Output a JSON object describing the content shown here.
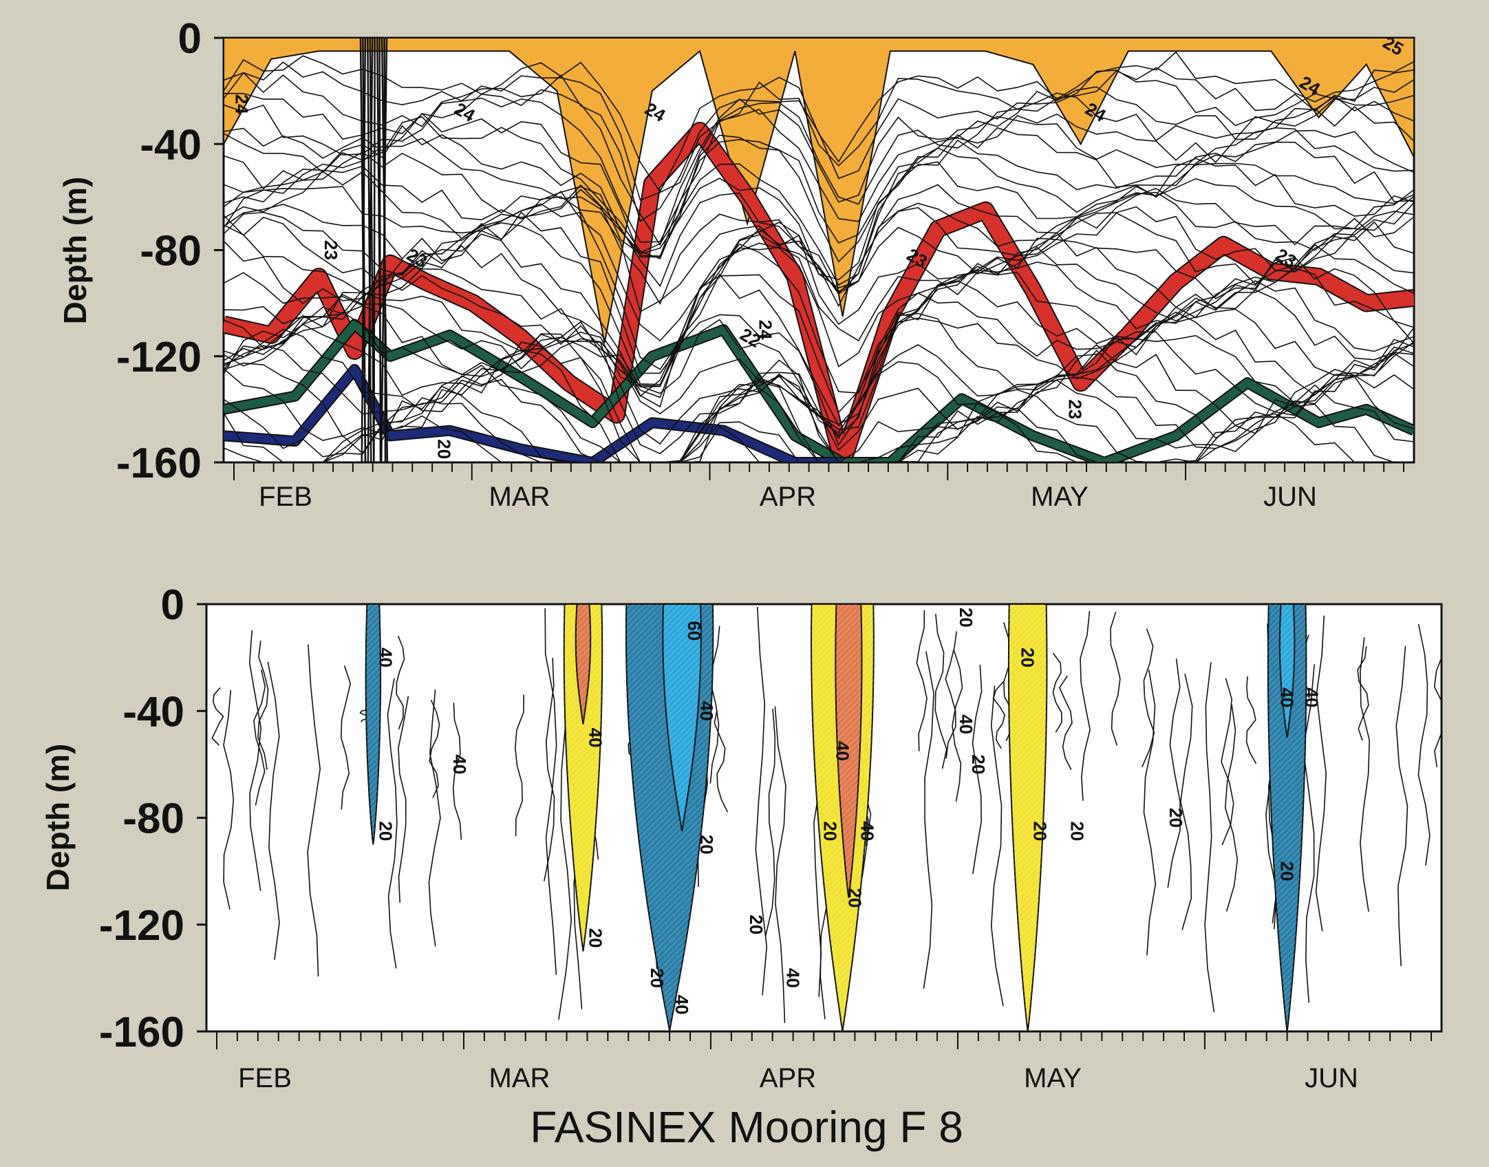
{
  "title": "FASINEX Mooring F 8",
  "colors": {
    "paper": "#d3cfbf",
    "plot_bg": "#ffffff",
    "orange": "#f2ad3b",
    "red": "#d6312b",
    "green": "#1e5c45",
    "navy": "#1c2a78",
    "blue_dark": "#2a7fa8",
    "blue_light": "#2ea9dd",
    "yellow": "#f2e232",
    "salmon": "#e07a4e",
    "contour": "#111111"
  },
  "chart_data": [
    {
      "type": "heatmap",
      "ylabel": "Depth (m)",
      "yticks": [
        0,
        -40,
        -80,
        -120,
        -160
      ],
      "ylim": [
        -160,
        0
      ],
      "month_labels": [
        "FEB",
        "MAR",
        "APR",
        "MAY",
        "JUN"
      ],
      "contour_labels": [
        "24",
        "24",
        "24",
        "24",
        "24",
        "24",
        "23",
        "23",
        "23",
        "23",
        "23",
        "22",
        "20",
        "25"
      ],
      "series": [
        {
          "name": "24",
          "color": "orange",
          "x": [
            0.0,
            0.04,
            0.08,
            0.12,
            0.16,
            0.2,
            0.24,
            0.28,
            0.32,
            0.36,
            0.4,
            0.44,
            0.48,
            0.52,
            0.56,
            0.6,
            0.64,
            0.68,
            0.72,
            0.76,
            0.8,
            0.84,
            0.88,
            0.92,
            0.96,
            1.0
          ],
          "y": [
            -40,
            -8,
            -5,
            -5,
            -5,
            -5,
            -5,
            -20,
            -115,
            -20,
            -5,
            -70,
            -5,
            -105,
            -5,
            -5,
            -5,
            -10,
            -40,
            -5,
            -5,
            -5,
            -5,
            -30,
            -10,
            -45
          ]
        },
        {
          "name": "23",
          "color": "red",
          "x": [
            0.0,
            0.04,
            0.08,
            0.11,
            0.14,
            0.17,
            0.21,
            0.25,
            0.29,
            0.33,
            0.36,
            0.4,
            0.44,
            0.48,
            0.52,
            0.56,
            0.6,
            0.64,
            0.68,
            0.72,
            0.76,
            0.8,
            0.84,
            0.88,
            0.92,
            0.96,
            1.0
          ],
          "y": [
            -108,
            -112,
            -90,
            -118,
            -85,
            -92,
            -100,
            -113,
            -130,
            -142,
            -55,
            -35,
            -60,
            -90,
            -160,
            -105,
            -72,
            -65,
            -95,
            -130,
            -112,
            -92,
            -78,
            -88,
            -90,
            -100,
            -98
          ]
        },
        {
          "name": "22",
          "color": "green",
          "x": [
            0.0,
            0.06,
            0.11,
            0.14,
            0.19,
            0.25,
            0.31,
            0.36,
            0.42,
            0.48,
            0.52,
            0.56,
            0.62,
            0.68,
            0.74,
            0.8,
            0.86,
            0.92,
            0.96,
            1.0
          ],
          "y": [
            -140,
            -135,
            -108,
            -120,
            -112,
            -128,
            -145,
            -120,
            -110,
            -150,
            -160,
            -160,
            -136,
            -150,
            -160,
            -150,
            -130,
            -145,
            -140,
            -148
          ]
        },
        {
          "name": "20",
          "color": "navy",
          "x": [
            0.0,
            0.06,
            0.11,
            0.14,
            0.19,
            0.25,
            0.31,
            0.36,
            0.42,
            0.48,
            0.52
          ],
          "y": [
            -150,
            -152,
            -125,
            -150,
            -148,
            -155,
            -160,
            -145,
            -148,
            -160,
            -160
          ]
        }
      ]
    },
    {
      "type": "heatmap",
      "ylabel": "Depth (m)",
      "yticks": [
        0,
        -40,
        -80,
        -120,
        -160
      ],
      "ylim": [
        -160,
        0
      ],
      "month_labels": [
        "FEB",
        "MAR",
        "APR",
        "MAY",
        "JUN"
      ],
      "contour_labels": [
        "40",
        "20",
        "40",
        "20",
        "60",
        "40",
        "20",
        "40",
        "20",
        "40",
        "20",
        "40",
        "20",
        "20",
        "40",
        "20",
        "20",
        "20",
        "40",
        "40",
        "20",
        "20",
        "40",
        "20",
        "40",
        "20"
      ],
      "regions": [
        {
          "color": "blue_dark",
          "x": [
            0.13,
            0.14
          ],
          "ylim": [
            -90,
            0
          ]
        },
        {
          "color": "yellow",
          "x": [
            0.29,
            0.32
          ],
          "ylim": [
            -130,
            0
          ]
        },
        {
          "color": "salmon",
          "x": [
            0.3,
            0.31
          ],
          "ylim": [
            -45,
            0
          ]
        },
        {
          "color": "blue_dark",
          "x": [
            0.34,
            0.41
          ],
          "ylim": [
            -160,
            0
          ]
        },
        {
          "color": "blue_light",
          "x": [
            0.37,
            0.4
          ],
          "ylim": [
            -85,
            0
          ]
        },
        {
          "color": "yellow",
          "x": [
            0.49,
            0.54
          ],
          "ylim": [
            -160,
            0
          ]
        },
        {
          "color": "salmon",
          "x": [
            0.51,
            0.53
          ],
          "ylim": [
            -110,
            0
          ]
        },
        {
          "color": "yellow",
          "x": [
            0.65,
            0.68
          ],
          "ylim": [
            -160,
            0
          ]
        },
        {
          "color": "blue_dark",
          "x": [
            0.86,
            0.89
          ],
          "ylim": [
            -160,
            0
          ]
        },
        {
          "color": "blue_light",
          "x": [
            0.87,
            0.88
          ],
          "ylim": [
            -50,
            0
          ]
        }
      ]
    }
  ]
}
